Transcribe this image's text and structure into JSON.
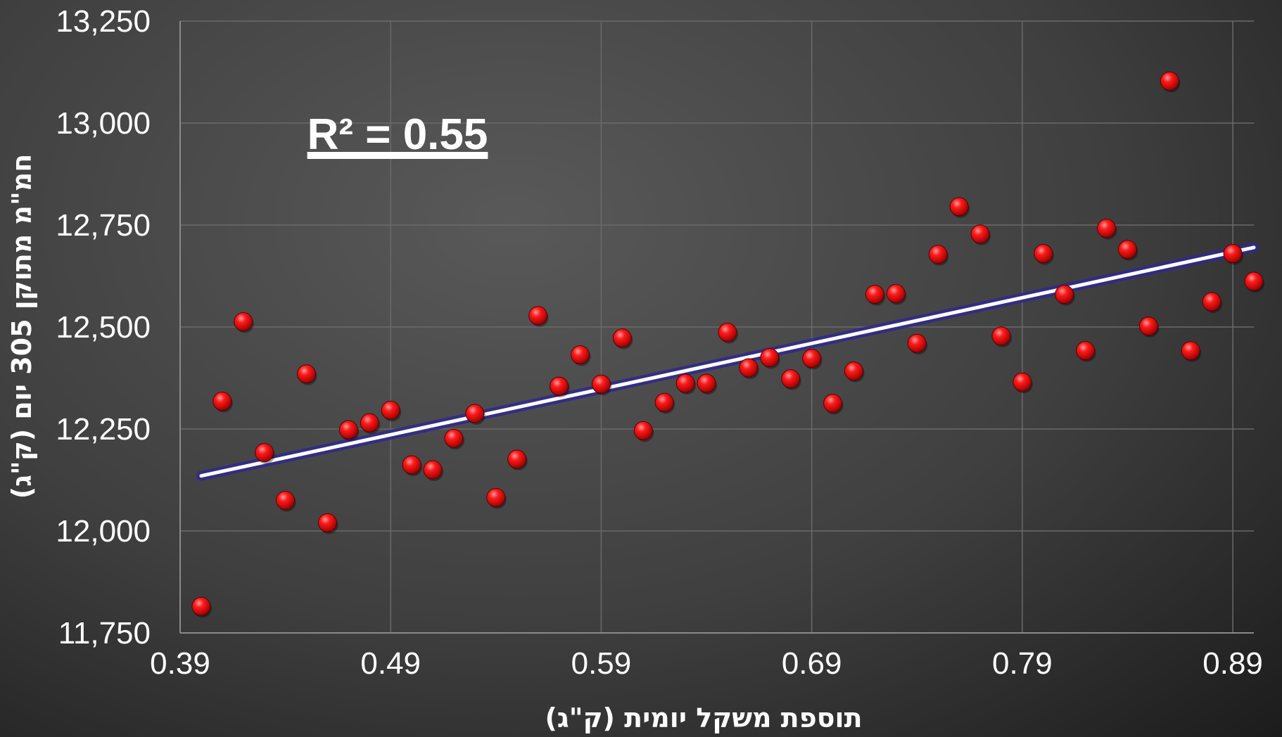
{
  "chart_data": {
    "type": "scatter",
    "xlabel": "תוספת משקל יומית (ק\"ג)",
    "ylabel": "חמ\"מ מתוקן 305 יום (ק\"ג)",
    "annotation": "R² = 0.55",
    "xlim": [
      0.39,
      0.9
    ],
    "ylim": [
      11750,
      13250
    ],
    "x_ticks": [
      0.39,
      0.49,
      0.59,
      0.69,
      0.79,
      0.89
    ],
    "x_tick_labels": [
      "0.39",
      "0.49",
      "0.59",
      "0.69",
      "0.79",
      "0.89"
    ],
    "y_ticks": [
      11750,
      12000,
      12250,
      12500,
      12750,
      13000,
      13250
    ],
    "y_tick_labels": [
      "11,750",
      "12,000",
      "12,250",
      "12,500",
      "12,750",
      "13,000",
      "13,250"
    ],
    "grid": true,
    "colors": {
      "points": "#ff1a1a",
      "trendline": "#ffffff",
      "trendline_glow": "#2e2a8c",
      "grid": "#6a6a6a"
    },
    "points": [
      {
        "x": 0.4,
        "y": 11815
      },
      {
        "x": 0.41,
        "y": 12318
      },
      {
        "x": 0.42,
        "y": 12513
      },
      {
        "x": 0.43,
        "y": 12192
      },
      {
        "x": 0.44,
        "y": 12075
      },
      {
        "x": 0.45,
        "y": 12385
      },
      {
        "x": 0.46,
        "y": 12020
      },
      {
        "x": 0.47,
        "y": 12248
      },
      {
        "x": 0.48,
        "y": 12265
      },
      {
        "x": 0.49,
        "y": 12296
      },
      {
        "x": 0.5,
        "y": 12162
      },
      {
        "x": 0.51,
        "y": 12150
      },
      {
        "x": 0.52,
        "y": 12227
      },
      {
        "x": 0.53,
        "y": 12288
      },
      {
        "x": 0.54,
        "y": 12082
      },
      {
        "x": 0.55,
        "y": 12176
      },
      {
        "x": 0.56,
        "y": 12528
      },
      {
        "x": 0.57,
        "y": 12355
      },
      {
        "x": 0.58,
        "y": 12432
      },
      {
        "x": 0.59,
        "y": 12360
      },
      {
        "x": 0.6,
        "y": 12473
      },
      {
        "x": 0.61,
        "y": 12246
      },
      {
        "x": 0.62,
        "y": 12315
      },
      {
        "x": 0.63,
        "y": 12362
      },
      {
        "x": 0.64,
        "y": 12362
      },
      {
        "x": 0.65,
        "y": 12487
      },
      {
        "x": 0.66,
        "y": 12400
      },
      {
        "x": 0.67,
        "y": 12425
      },
      {
        "x": 0.68,
        "y": 12373
      },
      {
        "x": 0.69,
        "y": 12423
      },
      {
        "x": 0.7,
        "y": 12313
      },
      {
        "x": 0.71,
        "y": 12392
      },
      {
        "x": 0.72,
        "y": 12580
      },
      {
        "x": 0.73,
        "y": 12582
      },
      {
        "x": 0.74,
        "y": 12460
      },
      {
        "x": 0.75,
        "y": 12678
      },
      {
        "x": 0.76,
        "y": 12795
      },
      {
        "x": 0.77,
        "y": 12728
      },
      {
        "x": 0.78,
        "y": 12478
      },
      {
        "x": 0.79,
        "y": 12365
      },
      {
        "x": 0.8,
        "y": 12680
      },
      {
        "x": 0.81,
        "y": 12580
      },
      {
        "x": 0.82,
        "y": 12442
      },
      {
        "x": 0.83,
        "y": 12742
      },
      {
        "x": 0.84,
        "y": 12690
      },
      {
        "x": 0.85,
        "y": 12502
      },
      {
        "x": 0.86,
        "y": 13103
      },
      {
        "x": 0.87,
        "y": 12442
      },
      {
        "x": 0.88,
        "y": 12562
      },
      {
        "x": 0.89,
        "y": 12680
      },
      {
        "x": 0.9,
        "y": 12612
      }
    ],
    "trendline": {
      "x": [
        0.4,
        0.9
      ],
      "y": [
        12135,
        12695
      ]
    }
  }
}
